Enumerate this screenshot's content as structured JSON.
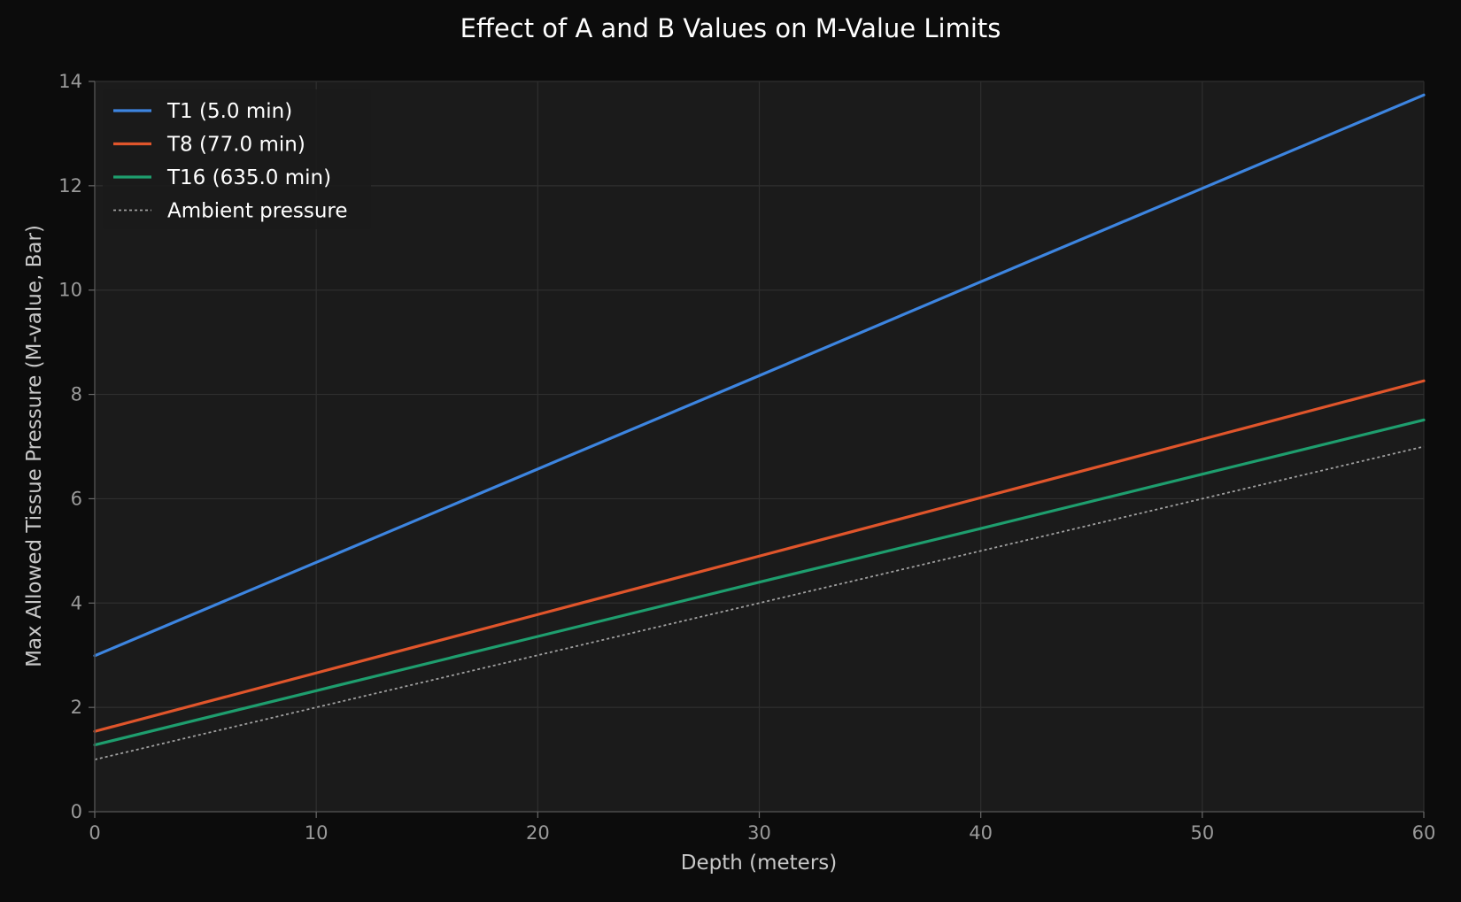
{
  "chart_data": {
    "type": "line",
    "title": "Effect of A and B Values on M-Value Limits",
    "xlabel": "Depth (meters)",
    "ylabel": "Max Allowed Tissue Pressure (M-value, Bar)",
    "xlim": [
      0,
      60
    ],
    "ylim": [
      0,
      14
    ],
    "x_ticks": [
      0,
      10,
      20,
      30,
      40,
      50,
      60
    ],
    "y_ticks": [
      0,
      2,
      4,
      6,
      8,
      10,
      12,
      14
    ],
    "grid": true,
    "legend_position": "top-left",
    "series": [
      {
        "name": "T1 (5.0 min)",
        "color": "#3d85e0",
        "style": "solid",
        "x": [
          0,
          10,
          20,
          30,
          40,
          50,
          60
        ],
        "y": [
          2.99,
          4.78,
          6.57,
          8.36,
          10.16,
          11.95,
          13.74
        ]
      },
      {
        "name": "T8 (77.0 min)",
        "color": "#e0552b",
        "style": "solid",
        "x": [
          0,
          10,
          20,
          30,
          40,
          50,
          60
        ],
        "y": [
          1.54,
          2.66,
          3.78,
          4.9,
          6.02,
          7.14,
          8.26
        ]
      },
      {
        "name": "T16 (635.0 min)",
        "color": "#1e9e6e",
        "style": "solid",
        "x": [
          0,
          10,
          20,
          30,
          40,
          50,
          60
        ],
        "y": [
          1.28,
          2.32,
          3.36,
          4.4,
          5.43,
          6.47,
          7.51
        ]
      },
      {
        "name": "Ambient pressure",
        "color": "#a0a0a0",
        "style": "dotted",
        "x": [
          0,
          10,
          20,
          30,
          40,
          50,
          60
        ],
        "y": [
          1.0,
          2.0,
          3.0,
          4.0,
          5.0,
          6.0,
          7.0
        ]
      }
    ]
  },
  "colors": {
    "figure_background": "#0c0c0c",
    "plot_background": "#1b1b1b",
    "grid": "#2f2f2f",
    "spine": "#4a4a4a"
  }
}
